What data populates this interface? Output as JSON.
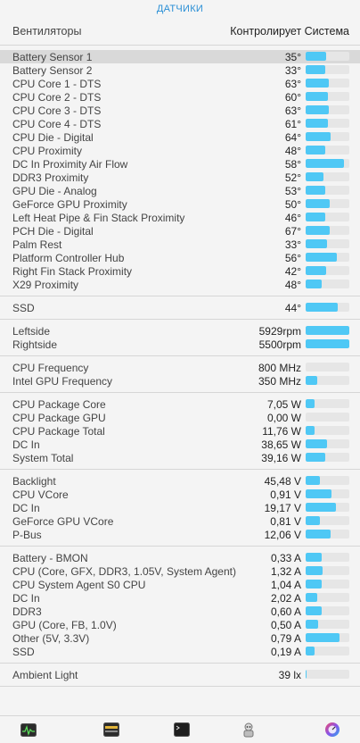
{
  "header": {
    "tab_title": "ДАТЧИКИ"
  },
  "fans_header": {
    "label": "Вентиляторы",
    "control": "Контролирует Система"
  },
  "colors": {
    "accent": "#2a8fd6",
    "bar": "#4fc8f5",
    "track": "#e6e6e6"
  },
  "sections": [
    {
      "id": "temperature",
      "rows": [
        {
          "name": "Battery Sensor 1",
          "value": "35°",
          "level": 0.47,
          "highlight": true
        },
        {
          "name": "Battery Sensor 2",
          "value": "33°",
          "level": 0.44
        },
        {
          "name": "CPU Core 1 - DTS",
          "value": "63°",
          "level": 0.54
        },
        {
          "name": "CPU Core 2 - DTS",
          "value": "60°",
          "level": 0.51
        },
        {
          "name": "CPU Core 3 - DTS",
          "value": "63°",
          "level": 0.54
        },
        {
          "name": "CPU Core 4 - DTS",
          "value": "61°",
          "level": 0.52
        },
        {
          "name": "CPU Die - Digital",
          "value": "64°",
          "level": 0.57
        },
        {
          "name": "CPU Proximity",
          "value": "48°",
          "level": 0.45
        },
        {
          "name": "DC In Proximity Air Flow",
          "value": "58°",
          "level": 0.88
        },
        {
          "name": "DDR3 Proximity",
          "value": "52°",
          "level": 0.41
        },
        {
          "name": "GPU Die - Analog",
          "value": "53°",
          "level": 0.45
        },
        {
          "name": "GeForce GPU Proximity",
          "value": "50°",
          "level": 0.55
        },
        {
          "name": "Left Heat Pipe & Fin Stack Proximity",
          "value": "46°",
          "level": 0.45
        },
        {
          "name": "PCH Die - Digital",
          "value": "67°",
          "level": 0.55
        },
        {
          "name": "Palm Rest",
          "value": "33°",
          "level": 0.49
        },
        {
          "name": "Platform Controller Hub",
          "value": "56°",
          "level": 0.71
        },
        {
          "name": "Right Fin Stack Proximity",
          "value": "42°",
          "level": 0.47
        },
        {
          "name": "X29 Proximity",
          "value": "48°",
          "level": 0.37
        }
      ]
    },
    {
      "id": "ssd",
      "rows": [
        {
          "name": "SSD",
          "value": "44°",
          "level": 0.73
        }
      ]
    },
    {
      "id": "fans",
      "rows": [
        {
          "name": "Leftside",
          "value": "5929rpm",
          "level": 1.0
        },
        {
          "name": "Rightside",
          "value": "5500rpm",
          "level": 1.0
        }
      ]
    },
    {
      "id": "frequency",
      "rows": [
        {
          "name": "CPU Frequency",
          "value": "800 MHz",
          "level": 0.0
        },
        {
          "name": "Intel GPU Frequency",
          "value": "350 MHz",
          "level": 0.27
        }
      ]
    },
    {
      "id": "power",
      "rows": [
        {
          "name": "CPU Package Core",
          "value": "7,05 W",
          "level": 0.2
        },
        {
          "name": "CPU Package GPU",
          "value": "0,00 W",
          "level": 0.0
        },
        {
          "name": "CPU Package Total",
          "value": "11,76 W",
          "level": 0.2
        },
        {
          "name": "DC In",
          "value": "38,65 W",
          "level": 0.49
        },
        {
          "name": "System Total",
          "value": "39,16 W",
          "level": 0.45
        }
      ]
    },
    {
      "id": "voltage",
      "rows": [
        {
          "name": "Backlight",
          "value": "45,48 V",
          "level": 0.33
        },
        {
          "name": "CPU VCore",
          "value": "0,91 V",
          "level": 0.59
        },
        {
          "name": "DC In",
          "value": "19,17 V",
          "level": 0.69
        },
        {
          "name": "GeForce GPU VCore",
          "value": "0,81 V",
          "level": 0.33
        },
        {
          "name": "P-Bus",
          "value": "12,06 V",
          "level": 0.57
        }
      ]
    },
    {
      "id": "current",
      "rows": [
        {
          "name": "Battery - BMON",
          "value": "0,33 A",
          "level": 0.37
        },
        {
          "name": "CPU (Core, GFX, DDR3, 1.05V, System Agent)",
          "value": "1,32 A",
          "level": 0.39
        },
        {
          "name": "CPU System Agent S0 CPU",
          "value": "1,04 A",
          "level": 0.37
        },
        {
          "name": "DC In",
          "value": "2,02 A",
          "level": 0.27
        },
        {
          "name": "DDR3",
          "value": "0,60 A",
          "level": 0.37
        },
        {
          "name": "GPU (Core, FB, 1.0V)",
          "value": "0,50 A",
          "level": 0.29
        },
        {
          "name": "Other (5V, 3.3V)",
          "value": "0,79 A",
          "level": 0.78
        },
        {
          "name": "SSD",
          "value": "0,19 A",
          "level": 0.2
        }
      ]
    },
    {
      "id": "light",
      "rows": [
        {
          "name": "Ambient Light",
          "value": "39 lx",
          "level": 0.03
        }
      ]
    }
  ],
  "toolbar": {
    "buttons": [
      {
        "icon": "activity-monitor-icon"
      },
      {
        "icon": "console-warning-icon"
      },
      {
        "icon": "terminal-icon"
      },
      {
        "icon": "automator-icon"
      },
      {
        "icon": "istat-menus-icon"
      }
    ]
  }
}
